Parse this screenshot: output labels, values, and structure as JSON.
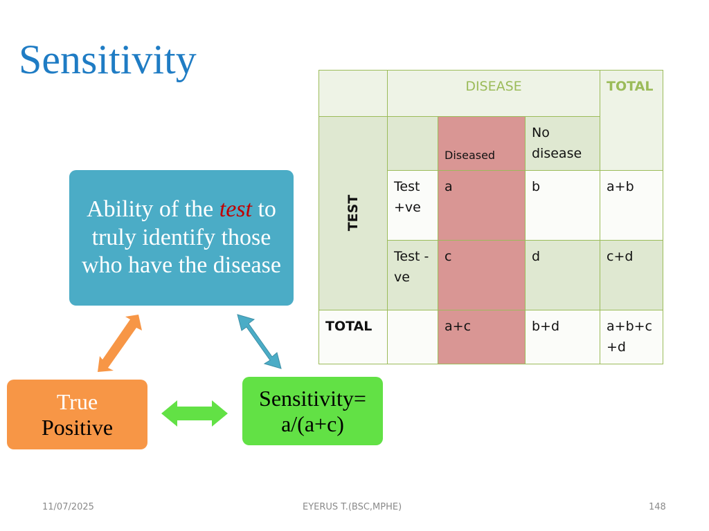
{
  "slide": {
    "title": "Sensitivity"
  },
  "table": {
    "disease": "DISEASE",
    "total": "TOTAL",
    "test": "TEST",
    "diseased": "Diseased",
    "no_disease": "No disease",
    "test_pos": "Test +ve",
    "test_neg": "Test -ve",
    "a": "a",
    "b": "b",
    "ab": "a+b",
    "c": "c",
    "d": "d",
    "cd": "c+d",
    "total_row": "TOTAL",
    "ac": "a+c",
    "bd": "b+d",
    "abcd": "a+b+c +d"
  },
  "diagram": {
    "ability_before": "Ability of the ",
    "ability_test": "test",
    "ability_after": " to truly identify those who have the disease",
    "true_line1": "True",
    "true_line2": "Positive",
    "sens_line1": "Sensitivity=",
    "sens_line2": "a/(a+c)"
  },
  "footer": {
    "date": "11/07/2025",
    "author": "EYERUS T.(BSC,MPHE)",
    "page": "148"
  },
  "colors": {
    "title": "#1f7cc4",
    "table_border": "#9bbb59",
    "diseased_column": "#d99694",
    "ability_box": "#4bacc6",
    "true_positive_box": "#f79646",
    "sensitivity_box": "#62e145"
  }
}
